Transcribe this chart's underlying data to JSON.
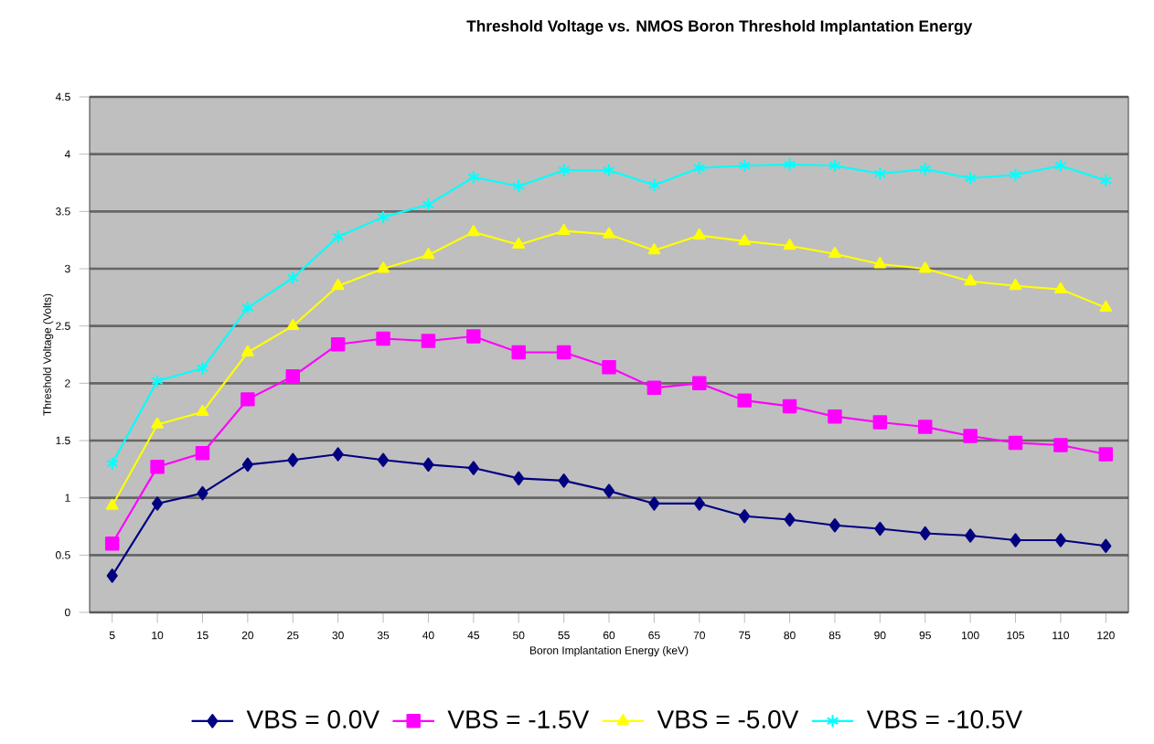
{
  "chart_data": {
    "type": "line",
    "title": "Threshold Voltage vs. NMOS Boron Threshold Implantation Energy",
    "xlabel": "Boron Implantation Energy (keV)",
    "ylabel": "Threshold Voltage (Volts)",
    "categories": [
      "5",
      "10",
      "15",
      "20",
      "25",
      "30",
      "35",
      "40",
      "45",
      "50",
      "55",
      "60",
      "65",
      "70",
      "75",
      "80",
      "85",
      "90",
      "95",
      "100",
      "105",
      "110",
      "120"
    ],
    "series": [
      {
        "name": "VBS = 0.0V",
        "color": "#000080",
        "marker": "diamond",
        "values": [
          0.32,
          0.95,
          1.04,
          1.29,
          1.33,
          1.38,
          1.33,
          1.29,
          1.26,
          1.17,
          1.15,
          1.06,
          0.95,
          0.95,
          0.84,
          0.81,
          0.76,
          0.73,
          0.69,
          0.67,
          0.63,
          0.63,
          0.58
        ]
      },
      {
        "name": "VBS = -1.5V",
        "color": "#ff00ff",
        "marker": "square",
        "values": [
          0.6,
          1.27,
          1.39,
          1.86,
          2.06,
          2.34,
          2.39,
          2.37,
          2.41,
          2.27,
          2.27,
          2.14,
          1.96,
          2.0,
          1.85,
          1.8,
          1.71,
          1.66,
          1.62,
          1.54,
          1.48,
          1.46,
          1.38
        ]
      },
      {
        "name": "VBS = -5.0V",
        "color": "#ffff00",
        "marker": "triangle",
        "values": [
          0.93,
          1.64,
          1.75,
          2.27,
          2.5,
          2.85,
          3.0,
          3.12,
          3.32,
          3.21,
          3.33,
          3.3,
          3.16,
          3.29,
          3.24,
          3.2,
          3.13,
          3.04,
          3.0,
          2.89,
          2.85,
          2.82,
          2.66
        ]
      },
      {
        "name": "VBS = -10.5V",
        "color": "#00ffff",
        "marker": "cross",
        "values": [
          1.3,
          2.02,
          2.13,
          2.66,
          2.92,
          3.28,
          3.45,
          3.56,
          3.8,
          3.72,
          3.86,
          3.86,
          3.73,
          3.88,
          3.9,
          3.91,
          3.9,
          3.83,
          3.87,
          3.79,
          3.82,
          3.9,
          3.77
        ]
      }
    ],
    "ylim": [
      0,
      4.5
    ],
    "yticks": [
      0,
      0.5,
      1,
      1.5,
      2,
      2.5,
      3,
      3.5,
      4,
      4.5
    ],
    "grid": "y",
    "legend": "bottom",
    "line_style": "solid"
  }
}
